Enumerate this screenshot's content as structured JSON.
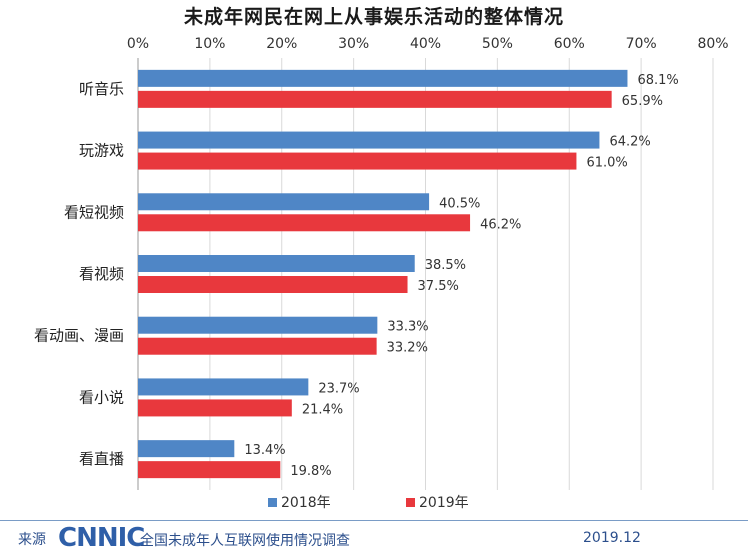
{
  "chart_data": {
    "type": "bar",
    "orientation": "horizontal",
    "title": "未成年网民在网上从事娱乐活动的整体情况",
    "categories": [
      "听音乐",
      "玩游戏",
      "看短视频",
      "看视频",
      "看动画、漫画",
      "看小说",
      "看直播"
    ],
    "series": [
      {
        "name": "2018年",
        "color": "#4f86c6",
        "values": [
          68.1,
          64.2,
          40.5,
          38.5,
          33.3,
          23.7,
          13.4
        ]
      },
      {
        "name": "2019年",
        "color": "#e8383d",
        "values": [
          65.9,
          61.0,
          46.2,
          37.5,
          33.2,
          21.4,
          19.8
        ]
      }
    ],
    "value_labels": [
      [
        "68.1%",
        "64.2%",
        "40.5%",
        "38.5%",
        "33.3%",
        "23.7%",
        "13.4%"
      ],
      [
        "65.9%",
        "61.0%",
        "46.2%",
        "37.5%",
        "33.2%",
        "21.4%",
        "19.8%"
      ]
    ],
    "xlim": [
      0,
      80
    ],
    "ticks": [
      "0%",
      "10%",
      "20%",
      "30%",
      "40%",
      "50%",
      "60%",
      "70%",
      "80%"
    ],
    "tick_values": [
      0,
      10,
      20,
      30,
      40,
      50,
      60,
      70,
      80
    ],
    "xaxis_position": "top",
    "grid": true,
    "legend_position": "bottom-center"
  },
  "footer": {
    "source_label": "来源",
    "logo_text": "CNNIC",
    "description": "全国未成年人互联网使用情况调查",
    "date": "2019.12"
  }
}
